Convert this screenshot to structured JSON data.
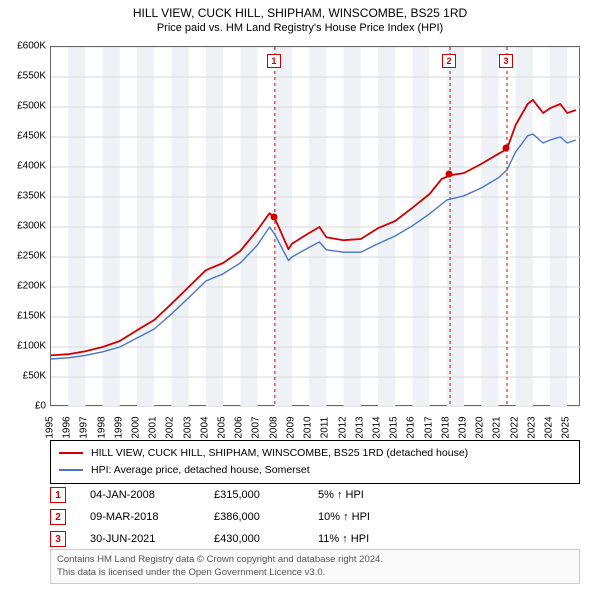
{
  "title": "HILL VIEW, CUCK HILL, SHIPHAM, WINSCOMBE, BS25 1RD",
  "subtitle": "Price paid vs. HM Land Registry's House Price Index (HPI)",
  "chart": {
    "type": "line",
    "background_color": "#ffffff",
    "grid_color": "#d9d9d9",
    "band_color": "#eef2f7",
    "border_color": "#666666",
    "x_years": [
      1995,
      1996,
      1997,
      1998,
      1999,
      2000,
      2001,
      2002,
      2003,
      2004,
      2005,
      2006,
      2007,
      2008,
      2009,
      2010,
      2011,
      2012,
      2013,
      2014,
      2015,
      2016,
      2017,
      2018,
      2019,
      2020,
      2021,
      2022,
      2023,
      2024,
      2025
    ],
    "xlim": [
      1995,
      2025.8
    ],
    "ylim": [
      0,
      600000
    ],
    "ytick_step": 50000,
    "ytick_labels": [
      "£0",
      "£50K",
      "£100K",
      "£150K",
      "£200K",
      "£250K",
      "£300K",
      "£350K",
      "£400K",
      "£450K",
      "£500K",
      "£550K",
      "£600K"
    ],
    "tick_fontsize": 10,
    "series": [
      {
        "name": "HILL VIEW, CUCK HILL, SHIPHAM, WINSCOMBE, BS25 1RD (detached house)",
        "color": "#d00000",
        "width": 1.8,
        "data": [
          [
            1995,
            86000
          ],
          [
            1996,
            88000
          ],
          [
            1997,
            93000
          ],
          [
            1998,
            100000
          ],
          [
            1999,
            110000
          ],
          [
            2000,
            128000
          ],
          [
            2001,
            145000
          ],
          [
            2002,
            172000
          ],
          [
            2003,
            200000
          ],
          [
            2004,
            228000
          ],
          [
            2005,
            240000
          ],
          [
            2006,
            260000
          ],
          [
            2007,
            295000
          ],
          [
            2007.7,
            323000
          ],
          [
            2008,
            315000
          ],
          [
            2008.8,
            263000
          ],
          [
            2009,
            272000
          ],
          [
            2010,
            290000
          ],
          [
            2010.6,
            300000
          ],
          [
            2011,
            283000
          ],
          [
            2012,
            278000
          ],
          [
            2013,
            280000
          ],
          [
            2014,
            298000
          ],
          [
            2015,
            310000
          ],
          [
            2016,
            332000
          ],
          [
            2017,
            355000
          ],
          [
            2017.7,
            380000
          ],
          [
            2018.19,
            386000
          ],
          [
            2019,
            390000
          ],
          [
            2020,
            405000
          ],
          [
            2021,
            422000
          ],
          [
            2021.5,
            430000
          ],
          [
            2022,
            470000
          ],
          [
            2022.7,
            505000
          ],
          [
            2023,
            512000
          ],
          [
            2023.6,
            490000
          ],
          [
            2024,
            498000
          ],
          [
            2024.6,
            505000
          ],
          [
            2025,
            490000
          ],
          [
            2025.5,
            495000
          ]
        ]
      },
      {
        "name": "HPI: Average price, detached house, Somerset",
        "color": "#4a74c9",
        "width": 1.4,
        "data": [
          [
            1995,
            80000
          ],
          [
            1996,
            82000
          ],
          [
            1997,
            86000
          ],
          [
            1998,
            92000
          ],
          [
            1999,
            100000
          ],
          [
            2000,
            115000
          ],
          [
            2001,
            130000
          ],
          [
            2002,
            155000
          ],
          [
            2003,
            182000
          ],
          [
            2004,
            210000
          ],
          [
            2005,
            222000
          ],
          [
            2006,
            240000
          ],
          [
            2007,
            270000
          ],
          [
            2007.7,
            300000
          ],
          [
            2008,
            288000
          ],
          [
            2008.8,
            244000
          ],
          [
            2009,
            250000
          ],
          [
            2010,
            266000
          ],
          [
            2010.6,
            275000
          ],
          [
            2011,
            262000
          ],
          [
            2012,
            258000
          ],
          [
            2013,
            258000
          ],
          [
            2014,
            272000
          ],
          [
            2015,
            285000
          ],
          [
            2016,
            302000
          ],
          [
            2017,
            322000
          ],
          [
            2018,
            345000
          ],
          [
            2019,
            352000
          ],
          [
            2020,
            365000
          ],
          [
            2021,
            382000
          ],
          [
            2021.5,
            395000
          ],
          [
            2022,
            425000
          ],
          [
            2022.7,
            452000
          ],
          [
            2023,
            455000
          ],
          [
            2023.6,
            440000
          ],
          [
            2024,
            445000
          ],
          [
            2024.6,
            450000
          ],
          [
            2025,
            440000
          ],
          [
            2025.5,
            445000
          ]
        ]
      }
    ],
    "event_markers": [
      {
        "n": "1",
        "year": 2008.01
      },
      {
        "n": "2",
        "year": 2018.19
      },
      {
        "n": "3",
        "year": 2021.5
      }
    ],
    "sale_points": [
      {
        "year": 2008.01,
        "price": 315000
      },
      {
        "year": 2018.19,
        "price": 386000
      },
      {
        "year": 2021.5,
        "price": 430000
      }
    ]
  },
  "legend": {
    "items": [
      {
        "label": "HILL VIEW, CUCK HILL, SHIPHAM, WINSCOMBE, BS25 1RD (detached house)",
        "color": "#d00000"
      },
      {
        "label": "HPI: Average price, detached house, Somerset",
        "color": "#4a74c9"
      }
    ]
  },
  "markers_table": [
    {
      "n": "1",
      "date": "04-JAN-2008",
      "price": "£315,000",
      "pct": "5% ↑ HPI"
    },
    {
      "n": "2",
      "date": "09-MAR-2018",
      "price": "£386,000",
      "pct": "10% ↑ HPI"
    },
    {
      "n": "3",
      "date": "30-JUN-2021",
      "price": "£430,000",
      "pct": "11% ↑ HPI"
    }
  ],
  "footer": {
    "line1": "Contains HM Land Registry data © Crown copyright and database right 2024.",
    "line2": "This data is licensed under the Open Government Licence v3.0."
  }
}
